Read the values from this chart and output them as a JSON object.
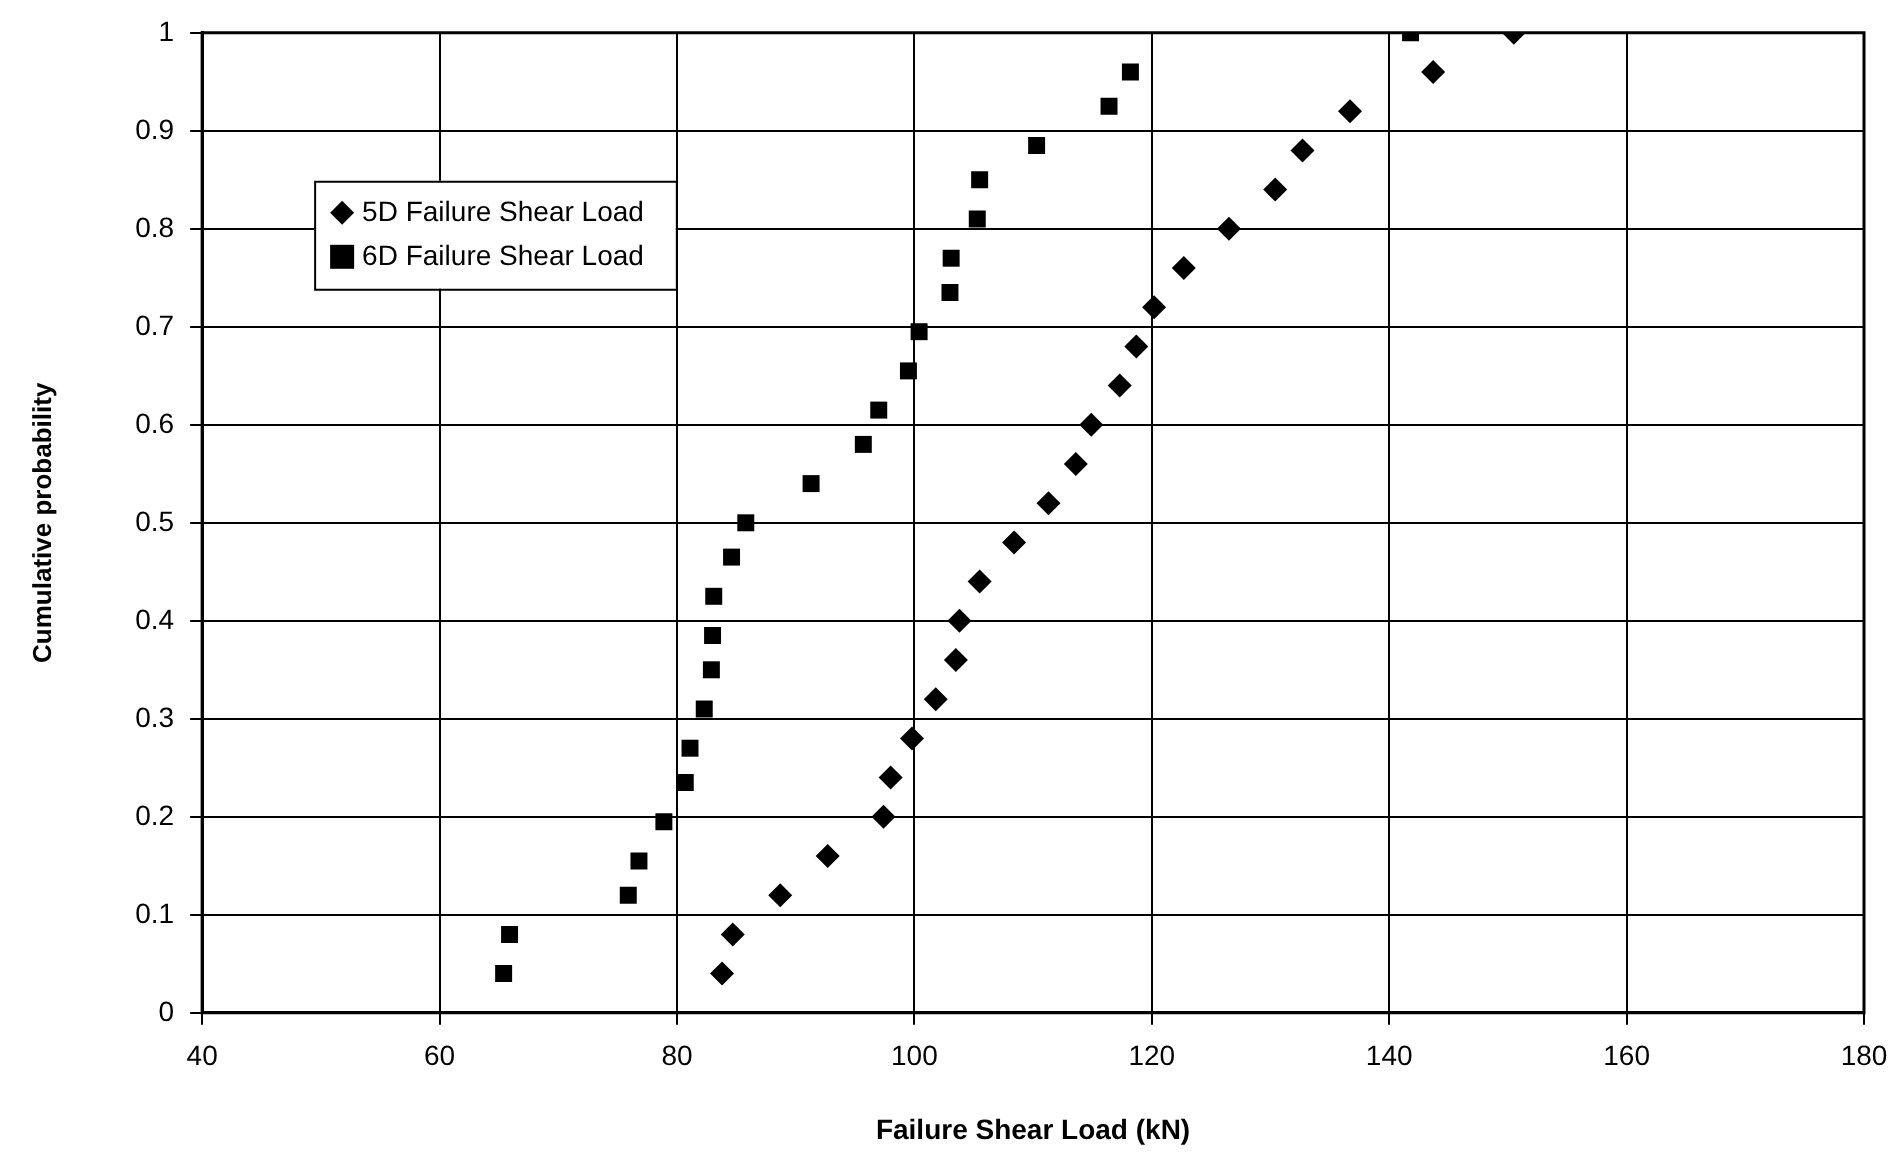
{
  "chart_data": {
    "type": "scatter",
    "xlabel": "Failure Shear Load (kN)",
    "ylabel": "Cumulative probability",
    "xlim": [
      40,
      180
    ],
    "xticks": [
      40,
      60,
      80,
      100,
      120,
      140,
      160,
      180
    ],
    "ylim": [
      0,
      1
    ],
    "yticks": [
      0,
      0.1,
      0.2,
      0.3,
      0.4,
      0.5,
      0.6,
      0.7,
      0.8,
      0.9,
      1
    ],
    "grid": true,
    "legend": "top left",
    "series": [
      {
        "name": "5D Failure Shear Load",
        "color": "#000000",
        "marker": "diamond",
        "x": [
          83.8,
          84.7,
          88.7,
          92.7,
          97.4,
          98.0,
          99.8,
          101.8,
          103.5,
          103.8,
          105.5,
          108.4,
          111.3,
          113.6,
          114.9,
          117.3,
          118.7,
          120.2,
          122.7,
          126.5,
          130.4,
          132.7,
          136.7,
          143.7,
          150.5
        ],
        "values": [
          0.04,
          0.08,
          0.12,
          0.16,
          0.2,
          0.24,
          0.28,
          0.32,
          0.36,
          0.4,
          0.44,
          0.48,
          0.52,
          0.56,
          0.6,
          0.64,
          0.68,
          0.72,
          0.76,
          0.8,
          0.84,
          0.88,
          0.92,
          0.96,
          1
        ]
      },
      {
        "name": "6D Failure Shear Load",
        "color": "#000000",
        "marker": "square",
        "x": [
          65.4,
          65.9,
          75.9,
          76.8,
          78.9,
          80.7,
          81.1,
          82.3,
          82.9,
          83.0,
          83.1,
          84.6,
          85.8,
          91.3,
          95.7,
          97.0,
          99.5,
          100.4,
          103.0,
          103.1,
          105.3,
          105.5,
          110.3,
          116.4,
          118.2,
          141.8
        ],
        "values": [
          0.04,
          0.08,
          0.12,
          0.155,
          0.195,
          0.235,
          0.27,
          0.31,
          0.35,
          0.385,
          0.425,
          0.465,
          0.5,
          0.54,
          0.58,
          0.615,
          0.655,
          0.695,
          0.735,
          0.77,
          0.81,
          0.85,
          0.885,
          0.925,
          0.96,
          1
        ]
      }
    ]
  }
}
